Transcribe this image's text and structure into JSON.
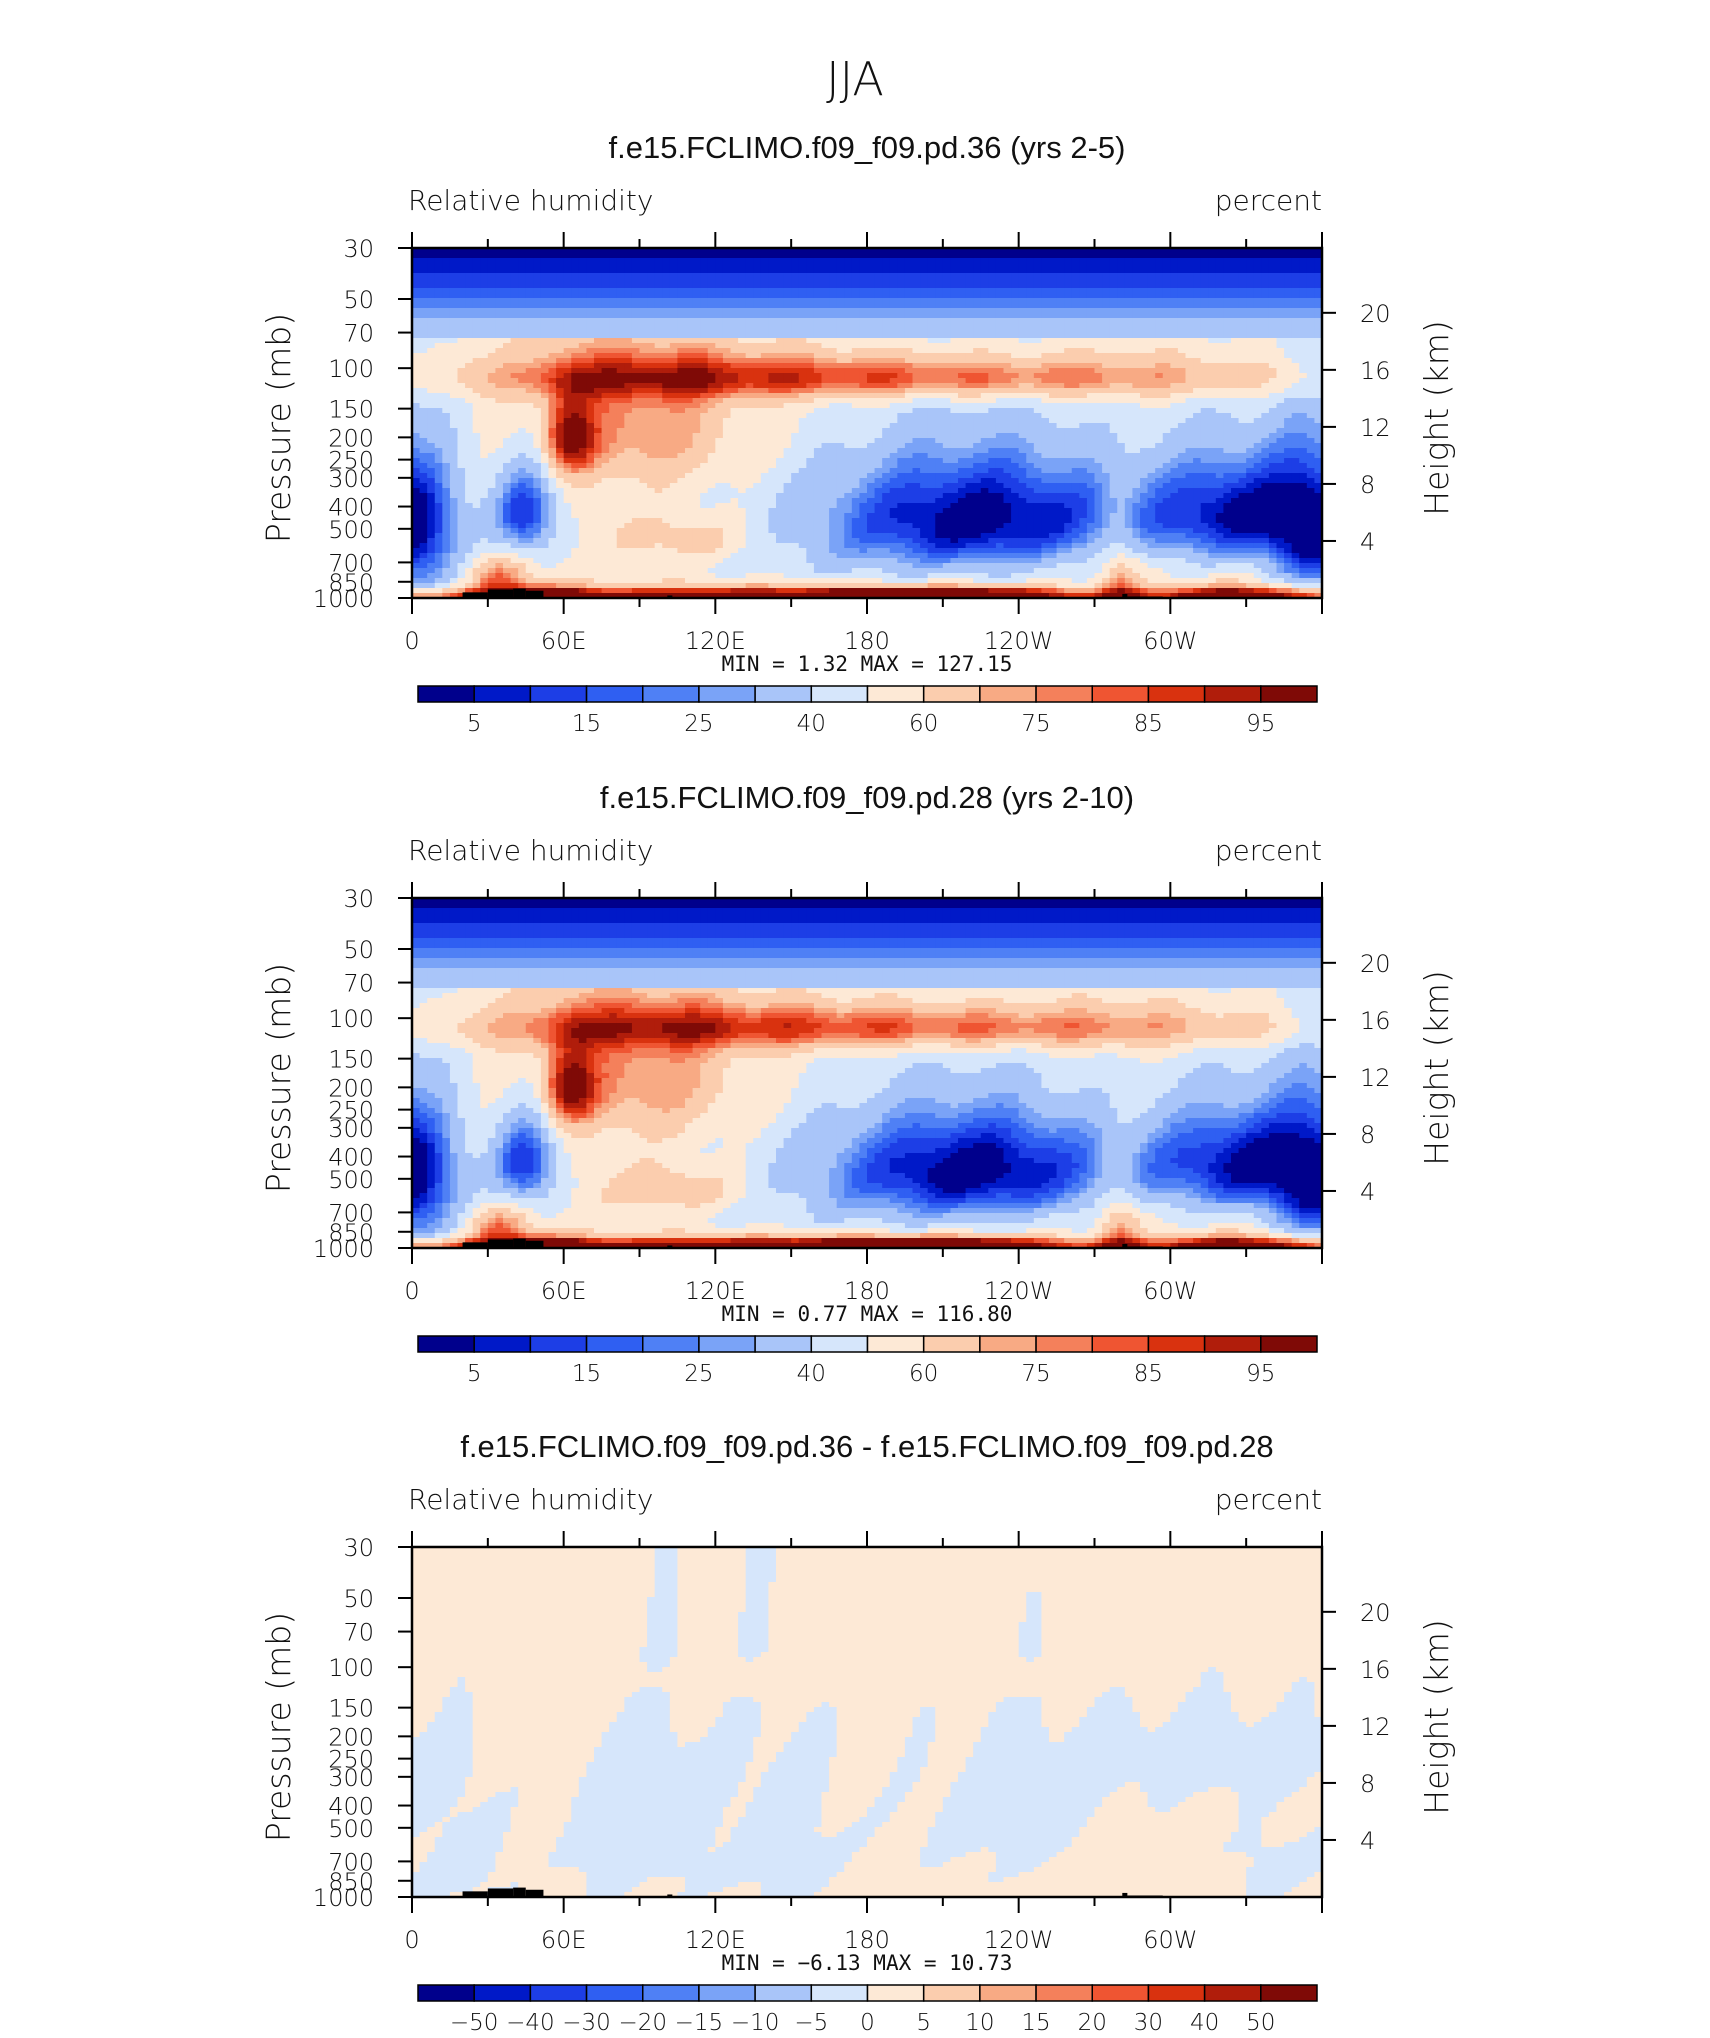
{
  "page_title": "JJA",
  "chart_data": [
    {
      "type": "heatmap",
      "title": "f.e15.FCLIMO.f09_f09.pd.36 (yrs 2-5)",
      "variable": "Relative humidity",
      "units": "percent",
      "ylabel": "Pressure (mb)",
      "ylabel_right": "Height (km)",
      "pressure_ticks": [
        "30",
        "50",
        "70",
        "100",
        "150",
        "200",
        "250",
        "300",
        "400",
        "500",
        "700",
        "850",
        "1000"
      ],
      "pressure_values": [
        30,
        50,
        70,
        100,
        150,
        200,
        250,
        300,
        400,
        500,
        700,
        850,
        1000
      ],
      "height_ticks": [
        "20",
        "16",
        "12",
        "8",
        "4"
      ],
      "height_values": [
        20,
        16,
        12,
        8,
        4
      ],
      "x_ticks": [
        "0",
        "60E",
        "120E",
        "180",
        "120W",
        "60W"
      ],
      "x_values": [
        0,
        60,
        120,
        180,
        240,
        300
      ],
      "x_range": [
        0,
        360
      ],
      "stats": {
        "min_label": "MIN =",
        "min": "1.32",
        "max_label": "MAX =",
        "max": "127.15"
      },
      "colorbar": {
        "levels": [
          5,
          10,
          15,
          20,
          25,
          30,
          40,
          50,
          60,
          70,
          75,
          80,
          85,
          90,
          95
        ],
        "labels": [
          "5",
          "15",
          "25",
          "40",
          "60",
          "75",
          "85",
          "95"
        ]
      },
      "field": {
        "background": 55,
        "features": [
          {
            "lon": 0,
            "p": 600,
            "sx": 14,
            "sy": 320,
            "amp": -38
          },
          {
            "lon": 45,
            "p": 430,
            "sx": 9,
            "sy": 150,
            "amp": -42
          },
          {
            "lon": 228,
            "p": 440,
            "sx": 45,
            "sy": 190,
            "amp": -48
          },
          {
            "lon": 330,
            "p": 430,
            "sx": 28,
            "sy": 170,
            "amp": -48
          },
          {
            "lon": 180,
            "p": 600,
            "sx": 55,
            "sy": 280,
            "amp": -12
          },
          {
            "lon": 62,
            "p": 200,
            "sx": 7,
            "sy": 55,
            "amp": 38
          },
          {
            "lon": 90,
            "p": 180,
            "sx": 28,
            "sy": 90,
            "amp": 22
          },
          {
            "lon": 110,
            "p": 550,
            "sx": 20,
            "sy": 90,
            "amp": 16
          },
          {
            "lon": 35,
            "p": 820,
            "sx": 9,
            "sy": 130,
            "amp": 25
          },
          {
            "lon": 280,
            "p": 820,
            "sx": 6,
            "sy": 300,
            "amp": 22
          },
          {
            "lon": 140,
            "p": 960,
            "sx": 60,
            "sy": 70,
            "amp": 32
          },
          {
            "lon": 215,
            "p": 960,
            "sx": 30,
            "sy": 55,
            "amp": 38
          },
          {
            "lon": 330,
            "p": 960,
            "sx": 25,
            "sy": 70,
            "amp": 34
          },
          {
            "lon": 50,
            "p": 960,
            "sx": 15,
            "sy": 60,
            "amp": 28
          },
          {
            "lon": 185,
            "p": 110,
            "sx": 120,
            "sy": 18,
            "amp": 38
          }
        ]
      }
    },
    {
      "type": "heatmap",
      "title": "f.e15.FCLIMO.f09_f09.pd.28 (yrs 2-10)",
      "variable": "Relative humidity",
      "units": "percent",
      "ylabel": "Pressure (mb)",
      "ylabel_right": "Height (km)",
      "pressure_ticks": [
        "30",
        "50",
        "70",
        "100",
        "150",
        "200",
        "250",
        "300",
        "400",
        "500",
        "700",
        "850",
        "1000"
      ],
      "pressure_values": [
        30,
        50,
        70,
        100,
        150,
        200,
        250,
        300,
        400,
        500,
        700,
        850,
        1000
      ],
      "height_ticks": [
        "20",
        "16",
        "12",
        "8",
        "4"
      ],
      "height_values": [
        20,
        16,
        12,
        8,
        4
      ],
      "x_ticks": [
        "0",
        "60E",
        "120E",
        "180",
        "120W",
        "60W"
      ],
      "x_values": [
        0,
        60,
        120,
        180,
        240,
        300
      ],
      "x_range": [
        0,
        360
      ],
      "stats": {
        "min_label": "MIN =",
        "min": "0.77",
        "max_label": "MAX =",
        "max": "116.80"
      },
      "colorbar": {
        "levels": [
          5,
          10,
          15,
          20,
          25,
          30,
          40,
          50,
          60,
          70,
          75,
          80,
          85,
          90,
          95
        ],
        "labels": [
          "5",
          "15",
          "25",
          "40",
          "60",
          "75",
          "85",
          "95"
        ]
      },
      "field": {
        "background": 55,
        "features": [
          {
            "lon": 0,
            "p": 600,
            "sx": 14,
            "sy": 320,
            "amp": -38
          },
          {
            "lon": 45,
            "p": 430,
            "sx": 9,
            "sy": 150,
            "amp": -42
          },
          {
            "lon": 225,
            "p": 450,
            "sx": 42,
            "sy": 180,
            "amp": -48
          },
          {
            "lon": 330,
            "p": 430,
            "sx": 28,
            "sy": 170,
            "amp": -48
          },
          {
            "lon": 180,
            "p": 600,
            "sx": 55,
            "sy": 280,
            "amp": -12
          },
          {
            "lon": 62,
            "p": 200,
            "sx": 7,
            "sy": 55,
            "amp": 38
          },
          {
            "lon": 90,
            "p": 180,
            "sx": 28,
            "sy": 90,
            "amp": 22
          },
          {
            "lon": 105,
            "p": 550,
            "sx": 20,
            "sy": 90,
            "amp": 18
          },
          {
            "lon": 35,
            "p": 820,
            "sx": 9,
            "sy": 130,
            "amp": 25
          },
          {
            "lon": 280,
            "p": 820,
            "sx": 6,
            "sy": 300,
            "amp": 22
          },
          {
            "lon": 140,
            "p": 960,
            "sx": 60,
            "sy": 70,
            "amp": 32
          },
          {
            "lon": 210,
            "p": 960,
            "sx": 30,
            "sy": 55,
            "amp": 38
          },
          {
            "lon": 330,
            "p": 960,
            "sx": 25,
            "sy": 70,
            "amp": 34
          },
          {
            "lon": 50,
            "p": 960,
            "sx": 15,
            "sy": 60,
            "amp": 28
          },
          {
            "lon": 185,
            "p": 110,
            "sx": 120,
            "sy": 18,
            "amp": 36
          }
        ]
      }
    },
    {
      "type": "heatmap",
      "title": "f.e15.FCLIMO.f09_f09.pd.36 - f.e15.FCLIMO.f09_f09.pd.28",
      "variable": "Relative humidity",
      "units": "percent",
      "ylabel": "Pressure (mb)",
      "ylabel_right": "Height (km)",
      "pressure_ticks": [
        "30",
        "50",
        "70",
        "100",
        "150",
        "200",
        "250",
        "300",
        "400",
        "500",
        "700",
        "850",
        "1000"
      ],
      "pressure_values": [
        30,
        50,
        70,
        100,
        150,
        200,
        250,
        300,
        400,
        500,
        700,
        850,
        1000
      ],
      "height_ticks": [
        "20",
        "16",
        "12",
        "8",
        "4"
      ],
      "height_values": [
        20,
        16,
        12,
        8,
        4
      ],
      "x_ticks": [
        "0",
        "60E",
        "120E",
        "180",
        "120W",
        "60W"
      ],
      "x_values": [
        0,
        60,
        120,
        180,
        240,
        300
      ],
      "x_range": [
        0,
        360
      ],
      "stats": {
        "min_label": "MIN =",
        "min": "−6.13",
        "max_label": "MAX =",
        "max": "10.73"
      },
      "colorbar": {
        "levels": [
          -50,
          -40,
          -30,
          -20,
          -15,
          -10,
          -5,
          0,
          5,
          10,
          15,
          20,
          30,
          40,
          50
        ],
        "labels": [
          "−50",
          "−40",
          "−30",
          "−20",
          "−15",
          "−10",
          "−5",
          "0",
          "5",
          "10",
          "15",
          "20",
          "30",
          "40",
          "50"
        ]
      },
      "field": {
        "background": 1.2,
        "features": [
          {
            "lon": 20,
            "p": 700,
            "sx": 14,
            "sy": 300,
            "amp": -2.5
          },
          {
            "lon": 75,
            "p": 550,
            "sx": 12,
            "sy": 350,
            "amp": -2.5
          },
          {
            "lon": 105,
            "p": 500,
            "sx": 10,
            "sy": 300,
            "amp": -2.5
          },
          {
            "lon": 145,
            "p": 600,
            "sx": 18,
            "sy": 400,
            "amp": -2.5
          },
          {
            "lon": 235,
            "p": 450,
            "sx": 30,
            "sy": 250,
            "amp": -2.3
          },
          {
            "lon": 320,
            "p": 250,
            "sx": 40,
            "sy": 90,
            "amp": -2.5
          },
          {
            "lon": 340,
            "p": 750,
            "sx": 12,
            "sy": 200,
            "amp": -2.3
          },
          {
            "lon": 87,
            "p": 450,
            "sx": 3,
            "sy": 25,
            "amp": -5
          },
          {
            "lon": 185,
            "p": 115,
            "sx": 45,
            "sy": 12,
            "amp": 3.5
          }
        ]
      }
    }
  ]
}
